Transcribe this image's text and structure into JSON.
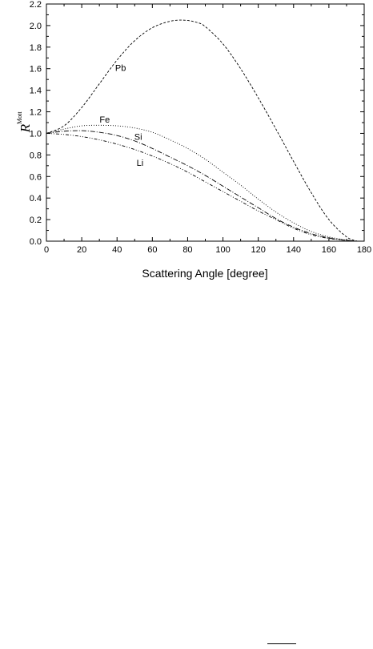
{
  "chart_data": {
    "type": "line",
    "xlabel": "Scattering Angle   [degree]",
    "ylabel": "R",
    "ylabel_superscript": "Mott",
    "xlim": [
      0,
      180
    ],
    "ylim": [
      0.0,
      2.2
    ],
    "xticks": [
      "0",
      "20",
      "40",
      "60",
      "80",
      "100",
      "120",
      "140",
      "160",
      "180"
    ],
    "yticks": [
      "0.0",
      "0.2",
      "0.4",
      "0.6",
      "0.8",
      "1.0",
      "1.2",
      "1.4",
      "1.6",
      "1.8",
      "2.0",
      "2.2"
    ],
    "grid": false,
    "series": [
      {
        "name": "Pb",
        "dash": "3,2",
        "x": [
          0,
          10,
          20,
          30,
          40,
          50,
          60,
          70,
          78,
          85,
          90,
          100,
          110,
          120,
          130,
          140,
          150,
          160,
          170,
          176
        ],
        "y": [
          1.0,
          1.07,
          1.24,
          1.46,
          1.68,
          1.86,
          1.98,
          2.04,
          2.05,
          2.03,
          1.99,
          1.83,
          1.6,
          1.33,
          1.04,
          0.74,
          0.45,
          0.2,
          0.04,
          0.0
        ]
      },
      {
        "name": "Fe",
        "dash": "1,2",
        "x": [
          0,
          10,
          20,
          30,
          40,
          50,
          60,
          70,
          80,
          90,
          100,
          110,
          120,
          130,
          140,
          150,
          160,
          170,
          176
        ],
        "y": [
          1.0,
          1.04,
          1.07,
          1.075,
          1.07,
          1.05,
          1.01,
          0.94,
          0.86,
          0.76,
          0.64,
          0.52,
          0.39,
          0.27,
          0.17,
          0.09,
          0.04,
          0.01,
          0.0
        ]
      },
      {
        "name": "Si",
        "dash": "6,2,1,2",
        "x": [
          0,
          10,
          20,
          30,
          40,
          50,
          60,
          70,
          80,
          90,
          100,
          110,
          120,
          130,
          140,
          150,
          160,
          170,
          176
        ],
        "y": [
          1.0,
          1.02,
          1.025,
          1.01,
          0.98,
          0.93,
          0.86,
          0.78,
          0.7,
          0.61,
          0.51,
          0.41,
          0.31,
          0.21,
          0.13,
          0.07,
          0.03,
          0.008,
          0.0
        ]
      },
      {
        "name": "Li",
        "dash": "4,2,1,2,1,2",
        "x": [
          0,
          10,
          20,
          30,
          40,
          50,
          60,
          70,
          80,
          90,
          100,
          110,
          120,
          130,
          140,
          150,
          160,
          170,
          176
        ],
        "y": [
          1.0,
          0.99,
          0.97,
          0.94,
          0.9,
          0.85,
          0.79,
          0.72,
          0.64,
          0.55,
          0.46,
          0.37,
          0.28,
          0.2,
          0.12,
          0.06,
          0.025,
          0.006,
          0.0
        ]
      }
    ],
    "annotations": [
      {
        "text": "Pb",
        "x": 42,
        "y": 1.58
      },
      {
        "text": "Fe",
        "x": 33,
        "y": 1.1
      },
      {
        "text": "Si",
        "x": 52,
        "y": 0.94
      },
      {
        "text": "Li",
        "x": 53,
        "y": 0.7
      }
    ]
  }
}
